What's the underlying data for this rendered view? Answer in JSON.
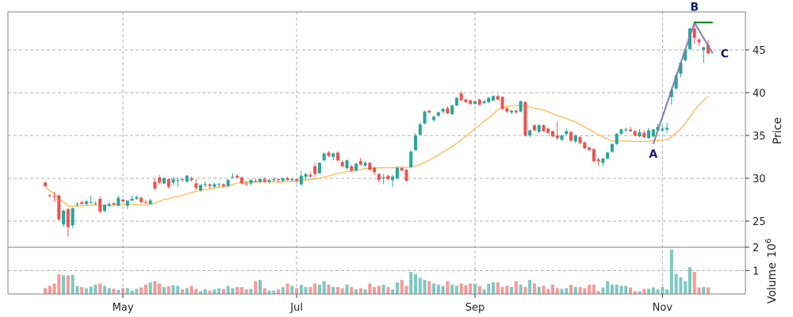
{
  "chart_data": {
    "type": "candlestick",
    "ylabel": "Price",
    "volume_label": "Volume",
    "volume_exponent_base": "10",
    "volume_exponent": "6",
    "ylim": [
      21.94,
      49.44
    ],
    "volume_ylim": [
      0,
      2
    ],
    "yticks": [
      25,
      30,
      35,
      40,
      45
    ],
    "ytick_labels": [
      "25",
      "30",
      "35",
      "40",
      "45"
    ],
    "volume_yticks": [
      1,
      2
    ],
    "volume_ytick_labels": [
      "1",
      "2"
    ],
    "xticks": [
      {
        "index": 17,
        "label": "May"
      },
      {
        "index": 55,
        "label": "Jul"
      },
      {
        "index": 94,
        "label": "Sep"
      },
      {
        "index": 135,
        "label": "Nov"
      }
    ],
    "grid": true,
    "mav_window": 20,
    "colors": {
      "up": "#26a69a",
      "down": "#ef5350",
      "up_volume": "#7fc8c0",
      "down_volume": "#f59a98",
      "mav": "#ffb84d",
      "pattern_line": "#7b7bb0",
      "pattern_label": "#191970",
      "target_line": "#008000"
    },
    "columns": [
      "open",
      "high",
      "low",
      "close",
      "volume_millions"
    ],
    "candles": [
      [
        29.5,
        29.6,
        29.0,
        29.1,
        0.25
      ],
      [
        28.0,
        28.2,
        27.8,
        27.9,
        0.35
      ],
      [
        27.9,
        28.4,
        27.3,
        27.8,
        0.45
      ],
      [
        28.0,
        28.1,
        25.0,
        25.2,
        0.85
      ],
      [
        24.6,
        26.4,
        24.3,
        26.2,
        0.8
      ],
      [
        26.4,
        26.5,
        23.2,
        24.3,
        0.8
      ],
      [
        24.5,
        26.6,
        24.2,
        26.5,
        0.82
      ],
      [
        26.9,
        27.2,
        26.7,
        27.0,
        0.35
      ],
      [
        27.2,
        27.4,
        26.9,
        27.0,
        0.3
      ],
      [
        27.0,
        27.5,
        26.9,
        27.3,
        0.25
      ],
      [
        27.2,
        28.0,
        27.0,
        27.2,
        0.32
      ],
      [
        27.0,
        27.3,
        26.9,
        27.1,
        0.4
      ],
      [
        27.6,
        27.9,
        25.9,
        26.1,
        0.45
      ],
      [
        26.2,
        27.0,
        26.0,
        26.9,
        0.35
      ],
      [
        26.8,
        27.2,
        26.6,
        27.0,
        0.25
      ],
      [
        27.1,
        27.2,
        26.9,
        26.9,
        0.22
      ],
      [
        26.8,
        28.0,
        26.7,
        27.7,
        0.18
      ],
      [
        27.5,
        27.6,
        27.2,
        27.3,
        0.25
      ],
      [
        26.8,
        27.4,
        26.4,
        27.4,
        0.25
      ],
      [
        27.4,
        28.0,
        27.3,
        27.6,
        0.15
      ],
      [
        27.6,
        28.0,
        27.5,
        27.8,
        0.22
      ],
      [
        27.7,
        27.9,
        27.1,
        27.2,
        0.28
      ],
      [
        27.2,
        27.5,
        27.0,
        27.1,
        0.4
      ],
      [
        27.0,
        27.6,
        26.9,
        27.4,
        0.5
      ],
      [
        29.6,
        30.0,
        28.6,
        28.8,
        0.55
      ],
      [
        30.1,
        30.4,
        29.3,
        29.5,
        0.45
      ],
      [
        29.4,
        30.1,
        29.3,
        30.0,
        0.3
      ],
      [
        29.9,
        30.0,
        28.8,
        29.0,
        0.33
      ],
      [
        29.5,
        30.2,
        29.2,
        29.9,
        0.38
      ],
      [
        29.7,
        30.1,
        29.0,
        29.8,
        0.35
      ],
      [
        29.9,
        30.0,
        29.6,
        29.8,
        0.2
      ],
      [
        29.6,
        30.4,
        29.5,
        30.3,
        0.25
      ],
      [
        30.0,
        30.2,
        29.6,
        29.8,
        0.35
      ],
      [
        29.4,
        29.9,
        28.6,
        28.9,
        0.22
      ],
      [
        28.6,
        29.3,
        28.4,
        29.2,
        0.12
      ],
      [
        29.2,
        29.6,
        29.0,
        29.3,
        0.2
      ],
      [
        29.3,
        29.4,
        28.8,
        29.1,
        0.15
      ],
      [
        29.0,
        29.5,
        28.9,
        29.3,
        0.2
      ],
      [
        29.3,
        29.5,
        29.0,
        29.3,
        0.25
      ],
      [
        29.3,
        29.4,
        28.9,
        29.1,
        0.22
      ],
      [
        29.1,
        29.9,
        28.9,
        29.8,
        0.35
      ],
      [
        30.2,
        30.6,
        30.0,
        30.2,
        0.25
      ],
      [
        30.3,
        30.5,
        30.0,
        30.1,
        0.3
      ],
      [
        30.1,
        30.2,
        29.3,
        29.4,
        0.3
      ],
      [
        29.4,
        29.7,
        29.1,
        29.3,
        0.2
      ],
      [
        29.4,
        29.9,
        29.2,
        29.8,
        0.22
      ],
      [
        29.7,
        30.0,
        29.5,
        29.6,
        0.55
      ],
      [
        29.6,
        30.0,
        29.4,
        29.9,
        0.6
      ],
      [
        29.9,
        30.1,
        29.5,
        29.6,
        0.25
      ],
      [
        29.6,
        29.9,
        29.4,
        29.8,
        0.15
      ],
      [
        29.8,
        30.1,
        29.6,
        29.9,
        0.15
      ],
      [
        29.9,
        30.0,
        29.5,
        29.8,
        0.2
      ],
      [
        29.7,
        30.1,
        29.6,
        30.0,
        0.3
      ],
      [
        30.0,
        30.2,
        29.7,
        29.8,
        0.45
      ],
      [
        29.8,
        30.0,
        29.6,
        29.9,
        0.35
      ],
      [
        29.9,
        30.0,
        29.4,
        29.7,
        0.25
      ],
      [
        29.3,
        30.9,
        29.1,
        30.3,
        0.4
      ],
      [
        30.2,
        30.6,
        29.8,
        30.5,
        0.3
      ],
      [
        30.4,
        30.7,
        30.1,
        30.2,
        0.3
      ],
      [
        31.4,
        31.8,
        30.2,
        30.5,
        0.45
      ],
      [
        30.6,
        31.9,
        30.5,
        31.8,
        0.4
      ],
      [
        32.1,
        33.0,
        32.0,
        32.9,
        0.55
      ],
      [
        33.0,
        33.2,
        32.5,
        32.6,
        0.4
      ],
      [
        32.5,
        33.0,
        32.1,
        32.9,
        0.3
      ],
      [
        33.0,
        33.1,
        31.9,
        32.1,
        0.3
      ],
      [
        31.9,
        32.1,
        31.3,
        31.4,
        0.25
      ],
      [
        31.2,
        32.2,
        31.0,
        32.1,
        0.4
      ],
      [
        31.4,
        31.6,
        30.7,
        30.9,
        0.3
      ],
      [
        30.9,
        31.8,
        30.8,
        31.7,
        0.2
      ],
      [
        32.0,
        32.4,
        31.5,
        31.6,
        0.25
      ],
      [
        31.5,
        32.0,
        31.3,
        31.8,
        0.2
      ],
      [
        31.8,
        31.9,
        30.9,
        31.0,
        0.45
      ],
      [
        31.2,
        31.4,
        30.4,
        30.7,
        0.3
      ],
      [
        30.5,
        30.6,
        29.5,
        29.8,
        0.35
      ],
      [
        30.0,
        30.5,
        29.3,
        30.1,
        0.4
      ],
      [
        30.3,
        30.4,
        29.8,
        29.9,
        0.3
      ],
      [
        29.8,
        30.4,
        29.0,
        30.2,
        0.2
      ],
      [
        30.0,
        31.4,
        29.9,
        31.2,
        0.5
      ],
      [
        31.2,
        31.3,
        30.8,
        30.9,
        0.6
      ],
      [
        31.0,
        31.1,
        29.6,
        29.7,
        0.35
      ],
      [
        31.3,
        33.3,
        31.2,
        33.1,
        0.95
      ],
      [
        33.3,
        35.3,
        33.2,
        35.0,
        0.85
      ],
      [
        35.1,
        36.5,
        35.0,
        36.3,
        0.7
      ],
      [
        36.4,
        37.9,
        36.3,
        37.8,
        0.6
      ],
      [
        37.9,
        38.0,
        37.6,
        37.7,
        0.55
      ],
      [
        36.8,
        37.3,
        36.6,
        37.2,
        0.45
      ],
      [
        37.3,
        37.8,
        37.2,
        37.7,
        0.4
      ],
      [
        37.8,
        38.2,
        37.6,
        38.1,
        0.35
      ],
      [
        38.2,
        38.4,
        37.5,
        37.6,
        0.55
      ],
      [
        37.5,
        38.6,
        37.4,
        38.5,
        0.4
      ],
      [
        38.5,
        39.5,
        38.4,
        39.4,
        0.35
      ],
      [
        39.9,
        40.2,
        39.0,
        39.1,
        0.45
      ],
      [
        39.2,
        39.3,
        38.8,
        38.9,
        0.38
      ],
      [
        39.1,
        39.2,
        38.6,
        38.7,
        0.45
      ],
      [
        38.7,
        39.1,
        38.6,
        39.0,
        0.45
      ],
      [
        39.2,
        39.3,
        38.5,
        38.6,
        0.35
      ],
      [
        38.8,
        39.1,
        38.7,
        39.0,
        0.2
      ],
      [
        38.9,
        39.5,
        38.8,
        39.4,
        0.45
      ],
      [
        39.1,
        39.7,
        39.0,
        39.6,
        0.5
      ],
      [
        39.6,
        39.8,
        39.1,
        39.2,
        0.5
      ],
      [
        39.5,
        39.6,
        38.0,
        38.1,
        0.3
      ],
      [
        38.2,
        38.3,
        37.6,
        37.8,
        0.35
      ],
      [
        37.7,
        38.0,
        37.5,
        37.9,
        0.3
      ],
      [
        37.9,
        38.0,
        37.6,
        37.7,
        0.55
      ],
      [
        37.8,
        39.1,
        37.7,
        39.0,
        0.4
      ],
      [
        38.9,
        39.0,
        34.9,
        35.0,
        0.3
      ],
      [
        35.0,
        35.7,
        34.8,
        35.6,
        0.6
      ],
      [
        36.2,
        36.3,
        35.5,
        35.6,
        0.45
      ],
      [
        35.4,
        36.3,
        35.3,
        36.2,
        0.3
      ],
      [
        36.2,
        36.3,
        35.4,
        35.5,
        0.35
      ],
      [
        35.8,
        35.9,
        35.2,
        35.3,
        0.22
      ],
      [
        35.5,
        35.6,
        34.8,
        34.9,
        0.4
      ],
      [
        35.0,
        36.6,
        34.5,
        34.7,
        0.25
      ],
      [
        34.5,
        35.1,
        34.4,
        35.0,
        0.22
      ],
      [
        35.2,
        35.8,
        35.0,
        35.5,
        0.25
      ],
      [
        35.4,
        35.5,
        34.3,
        34.4,
        0.4
      ],
      [
        34.3,
        35.1,
        34.1,
        35.0,
        0.3
      ],
      [
        34.8,
        34.9,
        34.0,
        34.1,
        0.3
      ],
      [
        34.2,
        34.3,
        33.4,
        33.5,
        0.25
      ],
      [
        33.6,
        33.7,
        33.2,
        33.3,
        0.4
      ],
      [
        33.4,
        33.5,
        31.9,
        32.0,
        0.4
      ],
      [
        32.2,
        32.4,
        31.5,
        32.0,
        0.12
      ],
      [
        31.8,
        32.4,
        31.4,
        32.3,
        0.28
      ],
      [
        32.3,
        33.1,
        32.2,
        33.0,
        0.55
      ],
      [
        33.1,
        34.1,
        33.0,
        34.0,
        0.4
      ],
      [
        34.0,
        35.3,
        33.9,
        35.2,
        0.4
      ],
      [
        35.2,
        35.8,
        35.1,
        35.7,
        0.35
      ],
      [
        35.6,
        35.9,
        35.4,
        35.7,
        0.35
      ],
      [
        35.7,
        36.0,
        35.4,
        35.5,
        0.28
      ],
      [
        35.5,
        35.7,
        34.9,
        35.0,
        0.12
      ],
      [
        34.9,
        35.7,
        34.8,
        35.4,
        0.12
      ],
      [
        35.3,
        35.6,
        34.7,
        34.8,
        0.22
      ],
      [
        34.7,
        35.9,
        34.6,
        35.6,
        0.22
      ],
      [
        34.9,
        35.8,
        34.8,
        35.7,
        0.28
      ],
      [
        35.6,
        36.4,
        35.5,
        36.0,
        0.2
      ],
      [
        35.6,
        36.2,
        35.4,
        35.8,
        0.3
      ],
      [
        35.7,
        36.5,
        35.3,
        35.9,
        0.2
      ],
      [
        39.5,
        40.6,
        38.6,
        40.3,
        1.9
      ],
      [
        40.5,
        42.2,
        40.3,
        42.0,
        0.85
      ],
      [
        42.2,
        43.6,
        41.8,
        43.5,
        0.72
      ],
      [
        43.8,
        45.1,
        43.6,
        45.0,
        0.55
      ],
      [
        45.1,
        47.6,
        45.0,
        47.5,
        1.15
      ],
      [
        47.5,
        48.0,
        45.7,
        46.4,
        0.95
      ],
      [
        46.2,
        46.4,
        45.5,
        45.9,
        0.28
      ],
      [
        45.0,
        45.4,
        43.5,
        45.3,
        0.3
      ],
      [
        45.6,
        46.2,
        44.5,
        44.6,
        0.28
      ]
    ],
    "pattern_points": [
      {
        "label": "A",
        "index": 133,
        "price": 34.0
      },
      {
        "label": "B",
        "index": 142,
        "price": 48.2
      },
      {
        "label": "C",
        "index": 146,
        "price": 44.6
      }
    ],
    "target_line": {
      "price": 48.2,
      "from_index": 142,
      "to_index": 146
    }
  }
}
